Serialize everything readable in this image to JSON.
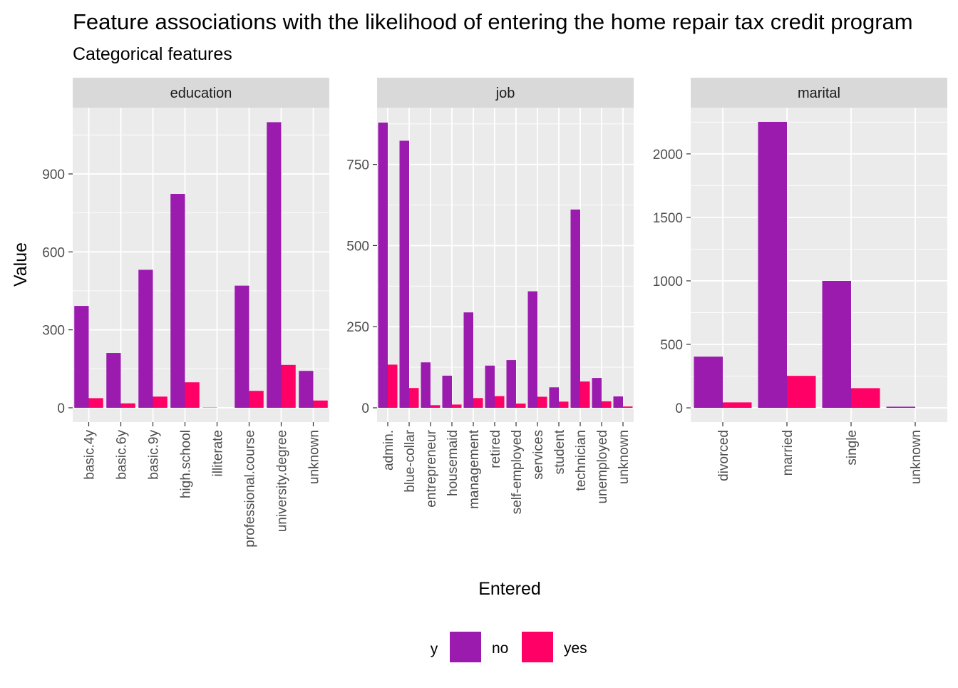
{
  "chart_data": {
    "type": "bar",
    "title": "Feature associations with the likelihood of entering the home repair tax credit program",
    "subtitle": "Categorical features",
    "xlabel": "Entered",
    "ylabel": "Value",
    "legend": {
      "title": "y",
      "position": "bottom",
      "entries": [
        {
          "name": "no",
          "color": "#9A1BAE"
        },
        {
          "name": "yes",
          "color": "#FF0066"
        }
      ]
    },
    "grid": true,
    "facets": [
      {
        "name": "education",
        "categories": [
          "basic.4y",
          "basic.6y",
          "basic.9y",
          "high.school",
          "illiterate",
          "professional.course",
          "university.degree",
          "unknown"
        ],
        "series": [
          {
            "name": "no",
            "values": [
              392,
              211,
              531,
              823,
              1,
              470,
              1099,
              142
            ]
          },
          {
            "name": "yes",
            "values": [
              37,
              17,
              43,
              98,
              0,
              65,
              165,
              28
            ]
          }
        ],
        "ylim": [
          -55,
          1155
        ],
        "yticks": [
          0,
          300,
          600,
          900
        ],
        "yticklabels": [
          "0",
          "300",
          "600",
          "900"
        ]
      },
      {
        "name": "job",
        "categories": [
          "admin.",
          "blue-collar",
          "entrepreneur",
          "housemaid",
          "management",
          "retired",
          "self-employed",
          "services",
          "student",
          "technician",
          "unemployed",
          "unknown"
        ],
        "series": [
          {
            "name": "no",
            "values": [
              879,
              823,
              140,
              99,
              294,
              130,
              147,
              359,
              63,
              611,
              92,
              35
            ]
          },
          {
            "name": "yes",
            "values": [
              133,
              61,
              8,
              10,
              30,
              36,
              13,
              34,
              19,
              81,
              20,
              4
            ]
          }
        ],
        "ylim": [
          -44,
          925
        ],
        "yticks": [
          0,
          250,
          500,
          750
        ],
        "yticklabels": [
          "0",
          "250",
          "500",
          "750"
        ]
      },
      {
        "name": "marital",
        "categories": [
          "divorced",
          "married",
          "single",
          "unknown"
        ],
        "series": [
          {
            "name": "no",
            "values": [
              403,
              2252,
              1000,
              9
            ]
          },
          {
            "name": "yes",
            "values": [
              43,
              252,
              155,
              0
            ]
          }
        ],
        "ylim": [
          -112,
          2364
        ],
        "yticks": [
          0,
          500,
          1000,
          1500,
          2000
        ],
        "yticklabels": [
          "0",
          "500",
          "1000",
          "1500",
          "2000"
        ]
      }
    ]
  }
}
